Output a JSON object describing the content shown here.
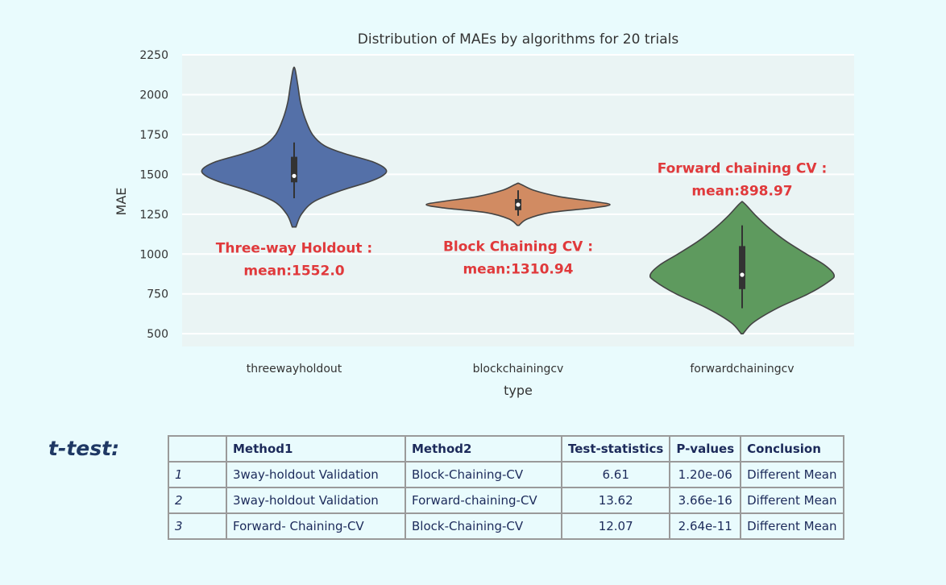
{
  "chart_data": {
    "type": "violin",
    "title": "Distribution of MAEs by algorithms for 20 trials",
    "xlabel": "type",
    "ylabel": "MAE",
    "ylim": [
      420,
      2250
    ],
    "yticks": [
      500,
      750,
      1000,
      1250,
      1500,
      1750,
      2000,
      2250
    ],
    "grid": true,
    "categories": [
      "threewayholdout",
      "blockchainingcv",
      "forwardchainingcv"
    ],
    "series": [
      {
        "category": "threewayholdout",
        "color": "#5470a8",
        "profile": [
          [
            1170,
            0.02
          ],
          [
            1250,
            0.08
          ],
          [
            1330,
            0.22
          ],
          [
            1400,
            0.52
          ],
          [
            1450,
            0.8
          ],
          [
            1490,
            0.96
          ],
          [
            1530,
            1.0
          ],
          [
            1580,
            0.85
          ],
          [
            1630,
            0.55
          ],
          [
            1680,
            0.33
          ],
          [
            1750,
            0.2
          ],
          [
            1850,
            0.12
          ],
          [
            1950,
            0.07
          ],
          [
            2060,
            0.04
          ],
          [
            2160,
            0.01
          ]
        ],
        "q1": 1450,
        "median": 1490,
        "q3": 1610,
        "whisker_low": 1350,
        "whisker_high": 1700,
        "annotation": [
          "Three-way Holdout :",
          "mean:1552.0"
        ],
        "annotation_y": 1000
      },
      {
        "category": "blockchainingcv",
        "color": "#d18b62",
        "profile": [
          [
            1180,
            0.01
          ],
          [
            1220,
            0.1
          ],
          [
            1260,
            0.35
          ],
          [
            1290,
            0.82
          ],
          [
            1310,
            1.0
          ],
          [
            1330,
            0.82
          ],
          [
            1360,
            0.45
          ],
          [
            1400,
            0.17
          ],
          [
            1440,
            0.02
          ]
        ],
        "q1": 1275,
        "median": 1310,
        "q3": 1345,
        "whisker_low": 1240,
        "whisker_high": 1400,
        "annotation": [
          "Block Chaining CV :",
          "mean:1310.94"
        ],
        "annotation_y": 1010
      },
      {
        "category": "forwardchainingcv",
        "color": "#5e9a5e",
        "profile": [
          [
            500,
            0.01
          ],
          [
            570,
            0.12
          ],
          [
            660,
            0.38
          ],
          [
            750,
            0.72
          ],
          [
            830,
            0.95
          ],
          [
            870,
            1.0
          ],
          [
            930,
            0.9
          ],
          [
            1000,
            0.7
          ],
          [
            1080,
            0.48
          ],
          [
            1160,
            0.3
          ],
          [
            1240,
            0.15
          ],
          [
            1320,
            0.02
          ]
        ],
        "q1": 780,
        "median": 870,
        "q3": 1050,
        "whisker_low": 660,
        "whisker_high": 1180,
        "annotation": [
          "Forward chaining CV :",
          "mean:898.97"
        ],
        "annotation_y": 1500
      }
    ]
  },
  "ttest": {
    "label": "t-test:",
    "headers": [
      "",
      "Method1",
      "Method2",
      "Test-statistics",
      "P-values",
      "Conclusion"
    ],
    "rows": [
      [
        "1",
        "3way-holdout Validation",
        "Block-Chaining-CV",
        "6.61",
        "1.20e-06",
        "Different Mean"
      ],
      [
        "2",
        "3way-holdout Validation",
        "Forward-chaining-CV",
        "13.62",
        "3.66e-16",
        "Different Mean"
      ],
      [
        "3",
        "Forward- Chaining-CV",
        "Block-Chaining-CV",
        "12.07",
        "2.64e-11",
        "Different Mean"
      ]
    ]
  }
}
